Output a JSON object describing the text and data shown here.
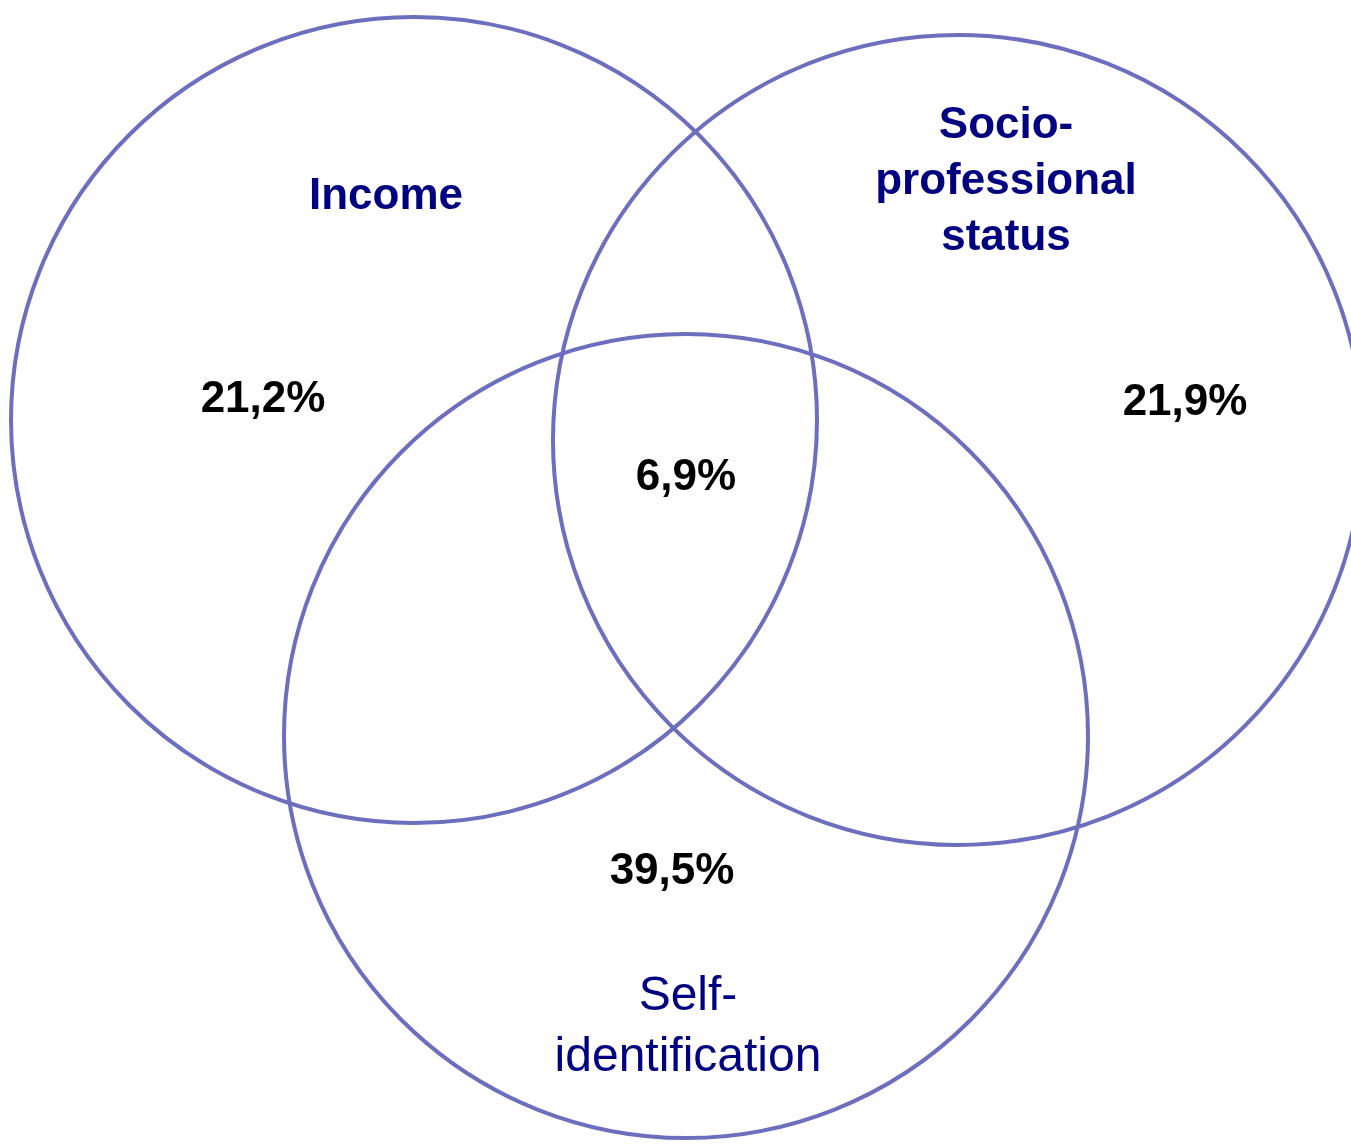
{
  "chart_data": {
    "type": "other",
    "categories": [
      "Income",
      "Socio-professional status",
      "Self-identification"
    ],
    "values": [
      21.2,
      21.9,
      39.5
    ],
    "value_labels": [
      "21,2%",
      "21,9%",
      "39,5%"
    ],
    "annotations": [
      "6,9%"
    ],
    "color": "#6e6ebe"
  }
}
